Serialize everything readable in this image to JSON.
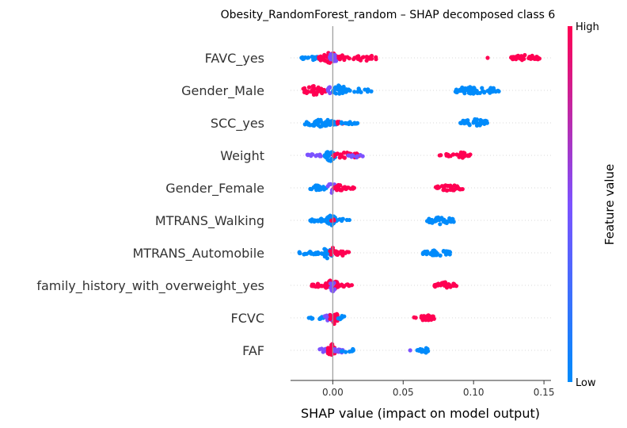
{
  "chart_data": {
    "type": "scatter",
    "subtype": "shap-beeswarm",
    "title": "Obesity_RandomForest_random – SHAP decomposed class 6",
    "xlabel": "SHAP value (impact on model output)",
    "xlim": [
      -0.03,
      0.155
    ],
    "xticks": [
      0.0,
      0.05,
      0.1,
      0.15
    ],
    "xtick_labels": [
      "0.00",
      "0.05",
      "0.10",
      "0.15"
    ],
    "zero_line": true,
    "grid": false,
    "colorbar": {
      "title": "Feature value",
      "high_label": "High",
      "low_label": "Low",
      "low_color": "#008bfb",
      "mid_color": "#7c52ff",
      "high_color": "#ff0052"
    },
    "features": [
      {
        "name": "FAVC_yes",
        "clusters": [
          {
            "lo": -0.024,
            "hi": -0.008,
            "n": 18,
            "spread": 3,
            "color": "low"
          },
          {
            "lo": -0.01,
            "hi": 0.006,
            "n": 40,
            "spread": 7,
            "color": "high"
          },
          {
            "lo": -0.004,
            "hi": 0.004,
            "n": 14,
            "spread": 6,
            "color": "mid"
          },
          {
            "lo": 0.004,
            "hi": 0.012,
            "n": 10,
            "spread": 4,
            "color": "high"
          },
          {
            "lo": 0.013,
            "hi": 0.032,
            "n": 22,
            "spread": 4,
            "color": "high"
          },
          {
            "lo": 0.109,
            "hi": 0.111,
            "n": 1,
            "spread": 0,
            "color": "high"
          },
          {
            "lo": 0.126,
            "hi": 0.147,
            "n": 36,
            "spread": 4,
            "color": "high"
          }
        ]
      },
      {
        "name": "Gender_Male",
        "clusters": [
          {
            "lo": -0.021,
            "hi": -0.005,
            "n": 38,
            "spread": 6,
            "color": "high"
          },
          {
            "lo": -0.004,
            "hi": 0.003,
            "n": 10,
            "spread": 7,
            "color": "mid"
          },
          {
            "lo": 0.0,
            "hi": 0.01,
            "n": 26,
            "spread": 7,
            "color": "low"
          },
          {
            "lo": 0.01,
            "hi": 0.028,
            "n": 14,
            "spread": 3,
            "color": "low"
          },
          {
            "lo": 0.087,
            "hi": 0.118,
            "n": 56,
            "spread": 6,
            "color": "low"
          }
        ]
      },
      {
        "name": "SCC_yes",
        "clusters": [
          {
            "lo": -0.02,
            "hi": 0.003,
            "n": 46,
            "spread": 5,
            "color": "low"
          },
          {
            "lo": 0.003,
            "hi": 0.007,
            "n": 6,
            "spread": 3,
            "color": "high"
          },
          {
            "lo": 0.006,
            "hi": 0.019,
            "n": 14,
            "spread": 2,
            "color": "low"
          },
          {
            "lo": 0.09,
            "hi": 0.111,
            "n": 40,
            "spread": 5,
            "color": "low"
          }
        ]
      },
      {
        "name": "Weight",
        "clusters": [
          {
            "lo": -0.018,
            "hi": -0.006,
            "n": 12,
            "spread": 2,
            "color": "mid"
          },
          {
            "lo": -0.006,
            "hi": 0.002,
            "n": 22,
            "spread": 8,
            "color": "low"
          },
          {
            "lo": 0.0,
            "hi": 0.02,
            "n": 30,
            "spread": 4,
            "color": "high"
          },
          {
            "lo": 0.01,
            "hi": 0.022,
            "n": 10,
            "spread": 3,
            "color": "mid"
          },
          {
            "lo": 0.075,
            "hi": 0.084,
            "n": 8,
            "spread": 2,
            "color": "high"
          },
          {
            "lo": 0.085,
            "hi": 0.098,
            "n": 22,
            "spread": 4,
            "color": "high"
          }
        ]
      },
      {
        "name": "Gender_Female",
        "clusters": [
          {
            "lo": -0.016,
            "hi": -0.004,
            "n": 20,
            "spread": 4,
            "color": "low"
          },
          {
            "lo": -0.004,
            "hi": 0.002,
            "n": 10,
            "spread": 8,
            "color": "mid"
          },
          {
            "lo": 0.0,
            "hi": 0.01,
            "n": 20,
            "spread": 4,
            "color": "high"
          },
          {
            "lo": 0.01,
            "hi": 0.016,
            "n": 8,
            "spread": 2,
            "color": "high"
          },
          {
            "lo": 0.073,
            "hi": 0.093,
            "n": 34,
            "spread": 4,
            "color": "high"
          }
        ]
      },
      {
        "name": "MTRANS_Walking",
        "clusters": [
          {
            "lo": -0.016,
            "hi": -0.004,
            "n": 22,
            "spread": 3,
            "color": "low"
          },
          {
            "lo": -0.004,
            "hi": 0.002,
            "n": 26,
            "spread": 8,
            "color": "low"
          },
          {
            "lo": 0.001,
            "hi": 0.012,
            "n": 10,
            "spread": 2,
            "color": "low"
          },
          {
            "lo": -0.001,
            "hi": 0.001,
            "n": 3,
            "spread": 2,
            "color": "high"
          },
          {
            "lo": 0.067,
            "hi": 0.086,
            "n": 38,
            "spread": 5,
            "color": "low"
          }
        ]
      },
      {
        "name": "MTRANS_Automobile",
        "clusters": [
          {
            "lo": -0.024,
            "hi": -0.006,
            "n": 22,
            "spread": 3,
            "color": "low"
          },
          {
            "lo": -0.008,
            "hi": 0.0,
            "n": 22,
            "spread": 7,
            "color": "low"
          },
          {
            "lo": -0.002,
            "hi": 0.004,
            "n": 12,
            "spread": 8,
            "color": "high"
          },
          {
            "lo": 0.004,
            "hi": 0.012,
            "n": 10,
            "spread": 4,
            "color": "high"
          },
          {
            "lo": 0.064,
            "hi": 0.086,
            "n": 36,
            "spread": 4,
            "color": "low"
          }
        ]
      },
      {
        "name": "family_history_with_overweight_yes",
        "clusters": [
          {
            "lo": -0.015,
            "hi": -0.005,
            "n": 22,
            "spread": 3,
            "color": "high"
          },
          {
            "lo": -0.005,
            "hi": 0.004,
            "n": 34,
            "spread": 8,
            "color": "high"
          },
          {
            "lo": -0.002,
            "hi": 0.002,
            "n": 8,
            "spread": 9,
            "color": "mid"
          },
          {
            "lo": 0.005,
            "hi": 0.014,
            "n": 10,
            "spread": 2,
            "color": "high"
          },
          {
            "lo": 0.072,
            "hi": 0.088,
            "n": 32,
            "spread": 4,
            "color": "high"
          }
        ]
      },
      {
        "name": "FCVC",
        "clusters": [
          {
            "lo": -0.018,
            "hi": -0.006,
            "n": 10,
            "spread": 2,
            "color": "low"
          },
          {
            "lo": -0.006,
            "hi": 0.001,
            "n": 16,
            "spread": 6,
            "color": "mid"
          },
          {
            "lo": -0.002,
            "hi": 0.004,
            "n": 22,
            "spread": 8,
            "color": "high"
          },
          {
            "lo": 0.003,
            "hi": 0.01,
            "n": 8,
            "spread": 3,
            "color": "low"
          },
          {
            "lo": 0.057,
            "hi": 0.06,
            "n": 2,
            "spread": 1,
            "color": "high"
          },
          {
            "lo": 0.061,
            "hi": 0.072,
            "n": 18,
            "spread": 4,
            "color": "high"
          }
        ]
      },
      {
        "name": "FAF",
        "clusters": [
          {
            "lo": -0.01,
            "hi": -0.002,
            "n": 12,
            "spread": 3,
            "color": "mid"
          },
          {
            "lo": -0.004,
            "hi": 0.002,
            "n": 28,
            "spread": 9,
            "color": "high"
          },
          {
            "lo": 0.001,
            "hi": 0.008,
            "n": 10,
            "spread": 4,
            "color": "mid"
          },
          {
            "lo": 0.006,
            "hi": 0.016,
            "n": 10,
            "spread": 3,
            "color": "low"
          },
          {
            "lo": 0.054,
            "hi": 0.056,
            "n": 1,
            "spread": 0,
            "color": "mid"
          },
          {
            "lo": 0.06,
            "hi": 0.072,
            "n": 16,
            "spread": 3,
            "color": "low"
          }
        ]
      }
    ]
  }
}
